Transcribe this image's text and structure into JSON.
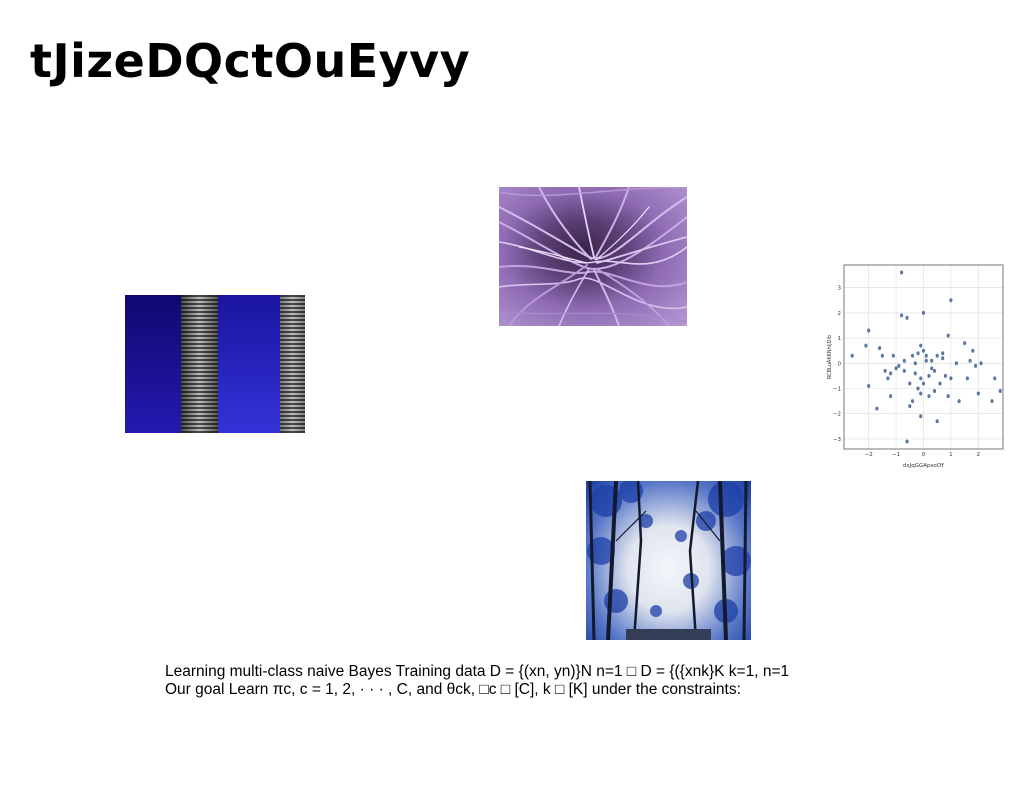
{
  "slide": {
    "title": "tJizeDQctOuEyvy",
    "body_text": "Learning multi-class naive Bayes Training data D = {(xn, yn)}N n=1 □ D = {({xnk}K k=1, n=1 Our goal Learn πc, c = 1, 2, · · · , C, and θck, □c □ [C], k □ [K] under the constraints:"
  },
  "images": {
    "blue_panels": "blue panels with grey ribbed stripes",
    "purple_strands": "purple tangled strands",
    "forest": "trees and sky"
  },
  "chart_data": {
    "type": "scatter",
    "xlabel": "dxJqGGApsoOY",
    "ylabel": "RCBLuAKKNhIjDib",
    "xlim": [
      -2.9,
      2.9
    ],
    "ylim": [
      -3.4,
      3.9
    ],
    "xticks": [
      -2,
      -1,
      0,
      1,
      2
    ],
    "yticks": [
      -3,
      -2,
      -1,
      0,
      1,
      2,
      3
    ],
    "grid": true,
    "marker_color": "#4a6a96",
    "points": [
      [
        -0.8,
        3.6
      ],
      [
        -0.8,
        1.9
      ],
      [
        -0.6,
        1.8
      ],
      [
        1.0,
        2.5
      ],
      [
        0.0,
        2.0
      ],
      [
        -2.0,
        1.3
      ],
      [
        -2.1,
        0.7
      ],
      [
        -2.6,
        0.3
      ],
      [
        -1.6,
        0.6
      ],
      [
        -1.5,
        0.3
      ],
      [
        -1.1,
        0.3
      ],
      [
        -0.7,
        0.1
      ],
      [
        -0.4,
        0.3
      ],
      [
        -0.2,
        0.4
      ],
      [
        -0.1,
        0.7
      ],
      [
        0.0,
        0.5
      ],
      [
        0.1,
        0.3
      ],
      [
        0.3,
        0.1
      ],
      [
        0.5,
        0.3
      ],
      [
        0.7,
        0.4
      ],
      [
        0.9,
        1.1
      ],
      [
        1.5,
        0.8
      ],
      [
        1.8,
        0.5
      ],
      [
        2.1,
        0.0
      ],
      [
        1.9,
        -0.1
      ],
      [
        2.6,
        -0.6
      ],
      [
        2.8,
        -1.1
      ],
      [
        2.5,
        -1.5
      ],
      [
        2.0,
        -1.2
      ],
      [
        1.3,
        -1.5
      ],
      [
        0.9,
        -1.3
      ],
      [
        0.4,
        -1.1
      ],
      [
        0.2,
        -1.3
      ],
      [
        -0.1,
        -1.2
      ],
      [
        -0.4,
        -1.5
      ],
      [
        -0.5,
        -1.7
      ],
      [
        -1.2,
        -1.3
      ],
      [
        -1.7,
        -1.8
      ],
      [
        -0.1,
        -2.1
      ],
      [
        0.5,
        -2.3
      ],
      [
        -0.6,
        -3.1
      ],
      [
        -1.3,
        -0.6
      ],
      [
        -1.2,
        -0.4
      ],
      [
        -1.4,
        -0.3
      ],
      [
        -1.0,
        -0.2
      ],
      [
        -0.7,
        -0.3
      ],
      [
        -0.3,
        -0.4
      ],
      [
        -0.1,
        -0.6
      ],
      [
        0.0,
        -0.8
      ],
      [
        0.2,
        -0.5
      ],
      [
        0.4,
        -0.3
      ],
      [
        0.6,
        -0.8
      ],
      [
        0.8,
        -0.5
      ],
      [
        1.0,
        -0.6
      ],
      [
        1.2,
        0.0
      ],
      [
        1.6,
        -0.6
      ],
      [
        0.3,
        -0.2
      ],
      [
        -0.5,
        -0.8
      ],
      [
        -0.2,
        -1.0
      ],
      [
        0.7,
        0.2
      ],
      [
        -0.9,
        -0.1
      ],
      [
        0.1,
        0.1
      ],
      [
        -2.0,
        -0.9
      ],
      [
        1.7,
        0.1
      ],
      [
        -0.3,
        0.0
      ]
    ]
  }
}
